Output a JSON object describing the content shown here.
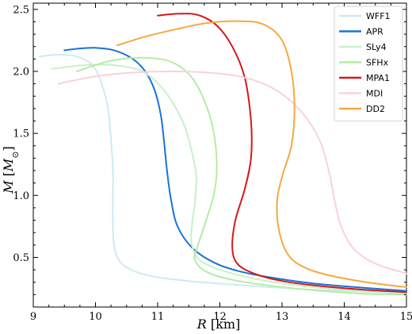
{
  "chart_data": {
    "type": "line",
    "xlabel": "R [km]",
    "ylabel": "M [M⊙]",
    "xlim": [
      9,
      15
    ],
    "ylim": [
      0.1,
      2.55
    ],
    "xticks": [
      9,
      10,
      11,
      12,
      13,
      14,
      15
    ],
    "yticks": [
      0.5,
      1.0,
      1.5,
      2.0,
      2.5
    ],
    "xtick_labels": [
      "9",
      "10",
      "11",
      "12",
      "13",
      "14",
      "15"
    ],
    "ytick_labels": [
      "0.5",
      "1.0",
      "1.5",
      "2.0",
      "2.5"
    ],
    "legend_position": "top-right",
    "grid": false,
    "series": [
      {
        "name": "WFF1",
        "color": "#ccebf0",
        "points": [
          [
            9.1,
            2.12
          ],
          [
            9.4,
            2.135
          ],
          [
            9.7,
            2.12
          ],
          [
            9.95,
            2.05
          ],
          [
            10.1,
            1.9
          ],
          [
            10.2,
            1.7
          ],
          [
            10.25,
            1.45
          ],
          [
            10.28,
            1.2
          ],
          [
            10.28,
            1.0
          ],
          [
            10.28,
            0.8
          ],
          [
            10.3,
            0.6
          ],
          [
            10.42,
            0.45
          ],
          [
            10.8,
            0.36
          ],
          [
            11.5,
            0.31
          ],
          [
            12.5,
            0.27
          ],
          [
            13.5,
            0.24
          ],
          [
            14.5,
            0.22
          ],
          [
            15,
            0.21
          ]
        ]
      },
      {
        "name": "APR",
        "color": "#1a73d8",
        "points": [
          [
            9.5,
            2.17
          ],
          [
            9.75,
            2.185
          ],
          [
            10.0,
            2.19
          ],
          [
            10.3,
            2.17
          ],
          [
            10.6,
            2.1
          ],
          [
            10.8,
            2.0
          ],
          [
            10.95,
            1.85
          ],
          [
            11.05,
            1.65
          ],
          [
            11.1,
            1.45
          ],
          [
            11.15,
            1.2
          ],
          [
            11.22,
            0.95
          ],
          [
            11.32,
            0.75
          ],
          [
            11.55,
            0.58
          ],
          [
            11.9,
            0.46
          ],
          [
            12.3,
            0.39
          ],
          [
            12.8,
            0.34
          ],
          [
            13.5,
            0.29
          ],
          [
            14.2,
            0.26
          ],
          [
            15,
            0.23
          ]
        ]
      },
      {
        "name": "SLy4",
        "color": "#c8f0c8",
        "points": [
          [
            9.3,
            2.02
          ],
          [
            9.8,
            2.05
          ],
          [
            10.3,
            2.05
          ],
          [
            10.75,
            2.0
          ],
          [
            11.1,
            1.85
          ],
          [
            11.4,
            1.6
          ],
          [
            11.55,
            1.35
          ],
          [
            11.62,
            1.15
          ],
          [
            11.6,
            0.95
          ],
          [
            11.55,
            0.75
          ],
          [
            11.55,
            0.6
          ],
          [
            11.7,
            0.47
          ],
          [
            12.2,
            0.37
          ],
          [
            13.0,
            0.29
          ],
          [
            14.0,
            0.24
          ],
          [
            15,
            0.22
          ]
        ]
      },
      {
        "name": "SFHx",
        "color": "#b5eba5",
        "points": [
          [
            9.7,
            2.0
          ],
          [
            10.2,
            2.08
          ],
          [
            10.7,
            2.11
          ],
          [
            11.2,
            2.08
          ],
          [
            11.55,
            1.95
          ],
          [
            11.8,
            1.7
          ],
          [
            11.92,
            1.45
          ],
          [
            11.95,
            1.2
          ],
          [
            11.9,
            1.0
          ],
          [
            11.78,
            0.8
          ],
          [
            11.65,
            0.6
          ],
          [
            11.6,
            0.48
          ],
          [
            11.8,
            0.38
          ],
          [
            12.3,
            0.31
          ],
          [
            13.2,
            0.25
          ],
          [
            14.2,
            0.21
          ],
          [
            15,
            0.2
          ]
        ]
      },
      {
        "name": "MPA1",
        "color": "#d41919",
        "points": [
          [
            11.0,
            2.45
          ],
          [
            11.35,
            2.465
          ],
          [
            11.65,
            2.455
          ],
          [
            11.95,
            2.37
          ],
          [
            12.2,
            2.2
          ],
          [
            12.4,
            1.95
          ],
          [
            12.5,
            1.6
          ],
          [
            12.5,
            1.3
          ],
          [
            12.4,
            1.05
          ],
          [
            12.25,
            0.8
          ],
          [
            12.2,
            0.58
          ],
          [
            12.28,
            0.45
          ],
          [
            12.55,
            0.37
          ],
          [
            13.0,
            0.31
          ],
          [
            13.6,
            0.27
          ],
          [
            14.3,
            0.24
          ],
          [
            15,
            0.22
          ]
        ]
      },
      {
        "name": "MDI",
        "color": "#fbd0dc",
        "points": [
          [
            9.4,
            1.9
          ],
          [
            10.0,
            1.96
          ],
          [
            10.6,
            1.99
          ],
          [
            11.2,
            2.0
          ],
          [
            11.8,
            1.99
          ],
          [
            12.4,
            1.95
          ],
          [
            12.9,
            1.85
          ],
          [
            13.3,
            1.68
          ],
          [
            13.6,
            1.45
          ],
          [
            13.75,
            1.2
          ],
          [
            13.85,
            0.95
          ],
          [
            13.95,
            0.75
          ],
          [
            14.15,
            0.57
          ],
          [
            14.5,
            0.45
          ],
          [
            15,
            0.37
          ]
        ]
      },
      {
        "name": "DD2",
        "color": "#f5a841",
        "points": [
          [
            10.35,
            2.21
          ],
          [
            10.8,
            2.28
          ],
          [
            11.3,
            2.34
          ],
          [
            11.8,
            2.39
          ],
          [
            12.3,
            2.405
          ],
          [
            12.7,
            2.38
          ],
          [
            13.0,
            2.25
          ],
          [
            13.15,
            2.0
          ],
          [
            13.2,
            1.7
          ],
          [
            13.15,
            1.4
          ],
          [
            13.0,
            1.15
          ],
          [
            12.92,
            0.95
          ],
          [
            12.95,
            0.72
          ],
          [
            13.1,
            0.52
          ],
          [
            13.4,
            0.41
          ],
          [
            13.9,
            0.34
          ],
          [
            14.5,
            0.29
          ],
          [
            15,
            0.26
          ]
        ]
      }
    ]
  }
}
